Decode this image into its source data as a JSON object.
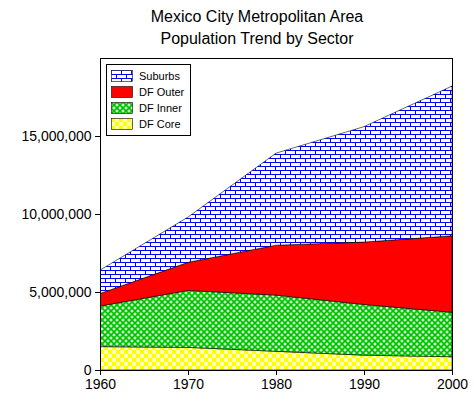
{
  "chart_data": {
    "type": "area",
    "title": "Mexico City Metropolitan Area",
    "subtitle": "Population Trend by Sector",
    "stacked": true,
    "grid": false,
    "legend": "top-left",
    "x": [
      1960,
      1970,
      1980,
      1990,
      2000
    ],
    "xlim": [
      1960,
      2000
    ],
    "xticks": [
      1960,
      1970,
      1980,
      1990,
      2000
    ],
    "ylim": [
      0,
      20000000
    ],
    "yticks": [
      0,
      {
        "value": 5000000,
        "label": "5,000,000"
      },
      {
        "value": 10000000,
        "label": "10,000,000"
      },
      {
        "value": 15000000,
        "label": "15,000,000"
      }
    ],
    "series": [
      {
        "name": "DF Core",
        "color": "#ffff00",
        "values": [
          1500000,
          1450000,
          1200000,
          950000,
          850000
        ]
      },
      {
        "name": "DF Inner",
        "color": "#00c000",
        "values": [
          2600000,
          3650000,
          3600000,
          3250000,
          2850000
        ]
      },
      {
        "name": "DF Outer",
        "color": "#ff0000",
        "values": [
          800000,
          1800000,
          3200000,
          4000000,
          4900000
        ]
      },
      {
        "name": "Suburbs",
        "color": "#0000ff",
        "values": [
          1500000,
          2900000,
          5900000,
          7400000,
          9600000
        ]
      }
    ]
  }
}
